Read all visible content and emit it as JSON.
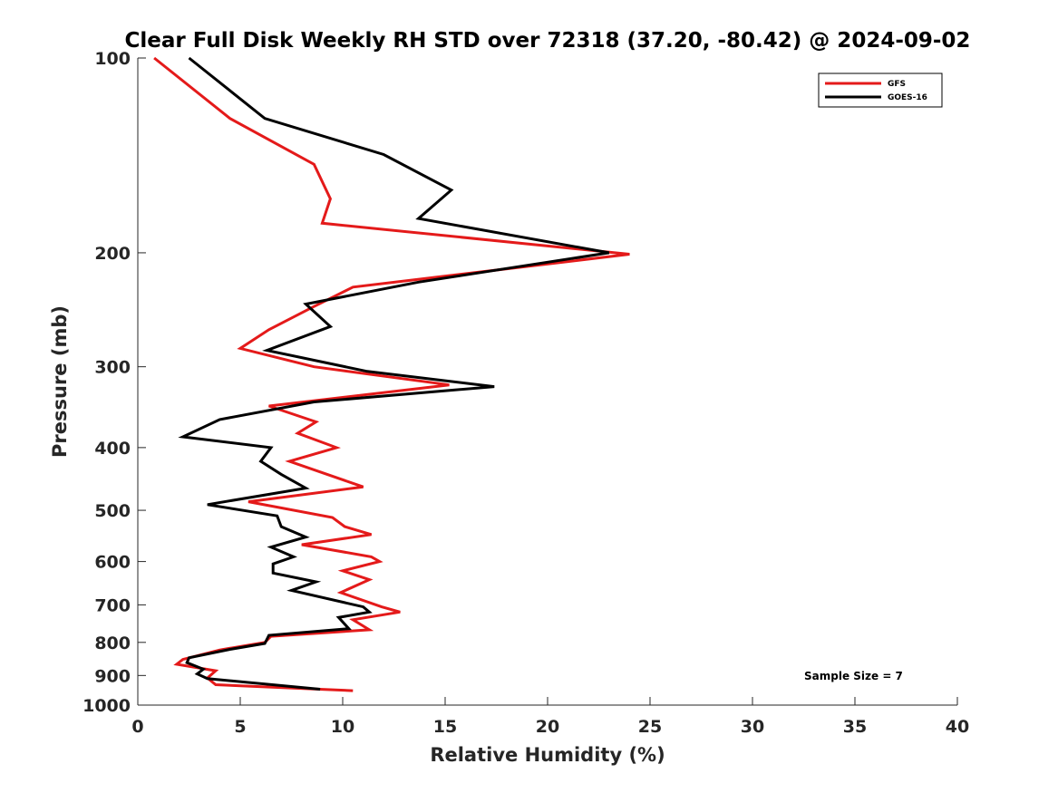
{
  "chart_data": {
    "type": "line",
    "title": "Clear Full Disk Weekly RH STD over 72318 (37.20, -80.42) @ 2024-09-02",
    "xlabel": "Relative Humidity (%)",
    "ylabel": "Pressure (mb)",
    "xlim": [
      0,
      40
    ],
    "ylim": [
      100,
      1000
    ],
    "yscale": "log",
    "y_reversed": true,
    "x_ticks": [
      "0",
      "5",
      "10",
      "15",
      "20",
      "25",
      "30",
      "35",
      "40"
    ],
    "y_ticks": [
      "100",
      "200",
      "300",
      "400",
      "500",
      "600",
      "700",
      "800",
      "900",
      "1000"
    ],
    "grid": false,
    "legend_position": "top-right",
    "annotation": "Sample Size = 7",
    "series": [
      {
        "name": "GFS",
        "color": "#e41a1a",
        "points": [
          [
            0.8,
            100
          ],
          [
            4.5,
            124
          ],
          [
            8.6,
            146
          ],
          [
            9.4,
            165
          ],
          [
            9.0,
            180
          ],
          [
            24.0,
            201
          ],
          [
            10.5,
            226
          ],
          [
            8.5,
            243
          ],
          [
            6.4,
            263
          ],
          [
            5.0,
            281
          ],
          [
            8.6,
            300
          ],
          [
            15.2,
            320
          ],
          [
            6.4,
            345
          ],
          [
            8.7,
            365
          ],
          [
            7.8,
            380
          ],
          [
            9.7,
            400
          ],
          [
            7.4,
            420
          ],
          [
            11.0,
            460
          ],
          [
            5.4,
            485
          ],
          [
            9.5,
            513
          ],
          [
            10.1,
            530
          ],
          [
            11.4,
            545
          ],
          [
            8.0,
            565
          ],
          [
            11.4,
            590
          ],
          [
            11.8,
            600
          ],
          [
            10.0,
            620
          ],
          [
            11.3,
            640
          ],
          [
            9.9,
            670
          ],
          [
            11.9,
            705
          ],
          [
            12.8,
            718
          ],
          [
            10.5,
            738
          ],
          [
            11.3,
            765
          ],
          [
            6.5,
            783
          ],
          [
            6.2,
            800
          ],
          [
            4.0,
            822
          ],
          [
            2.2,
            850
          ],
          [
            1.9,
            865
          ],
          [
            3.8,
            885
          ],
          [
            3.4,
            908
          ],
          [
            3.8,
            930
          ],
          [
            10.5,
            950
          ]
        ]
      },
      {
        "name": "GOES-16",
        "color": "#000000",
        "points": [
          [
            2.5,
            100
          ],
          [
            6.2,
            124
          ],
          [
            12.0,
            141
          ],
          [
            15.3,
            160
          ],
          [
            13.7,
            177
          ],
          [
            23.0,
            200
          ],
          [
            13.7,
            222
          ],
          [
            8.2,
            240
          ],
          [
            9.4,
            260
          ],
          [
            6.3,
            283
          ],
          [
            11.2,
            305
          ],
          [
            17.4,
            322
          ],
          [
            8.6,
            340
          ],
          [
            4.0,
            362
          ],
          [
            2.2,
            385
          ],
          [
            6.5,
            400
          ],
          [
            6.0,
            420
          ],
          [
            7.0,
            440
          ],
          [
            8.2,
            462
          ],
          [
            3.4,
            490
          ],
          [
            6.8,
            510
          ],
          [
            7.0,
            530
          ],
          [
            8.2,
            550
          ],
          [
            6.5,
            570
          ],
          [
            7.6,
            590
          ],
          [
            6.6,
            605
          ],
          [
            6.6,
            625
          ],
          [
            8.7,
            645
          ],
          [
            7.5,
            665
          ],
          [
            11.0,
            705
          ],
          [
            11.3,
            718
          ],
          [
            9.8,
            732
          ],
          [
            10.3,
            762
          ],
          [
            6.4,
            780
          ],
          [
            6.2,
            803
          ],
          [
            4.5,
            820
          ],
          [
            2.5,
            845
          ],
          [
            2.4,
            860
          ],
          [
            3.2,
            880
          ],
          [
            2.9,
            895
          ],
          [
            3.4,
            910
          ],
          [
            8.9,
            945
          ]
        ]
      }
    ]
  }
}
